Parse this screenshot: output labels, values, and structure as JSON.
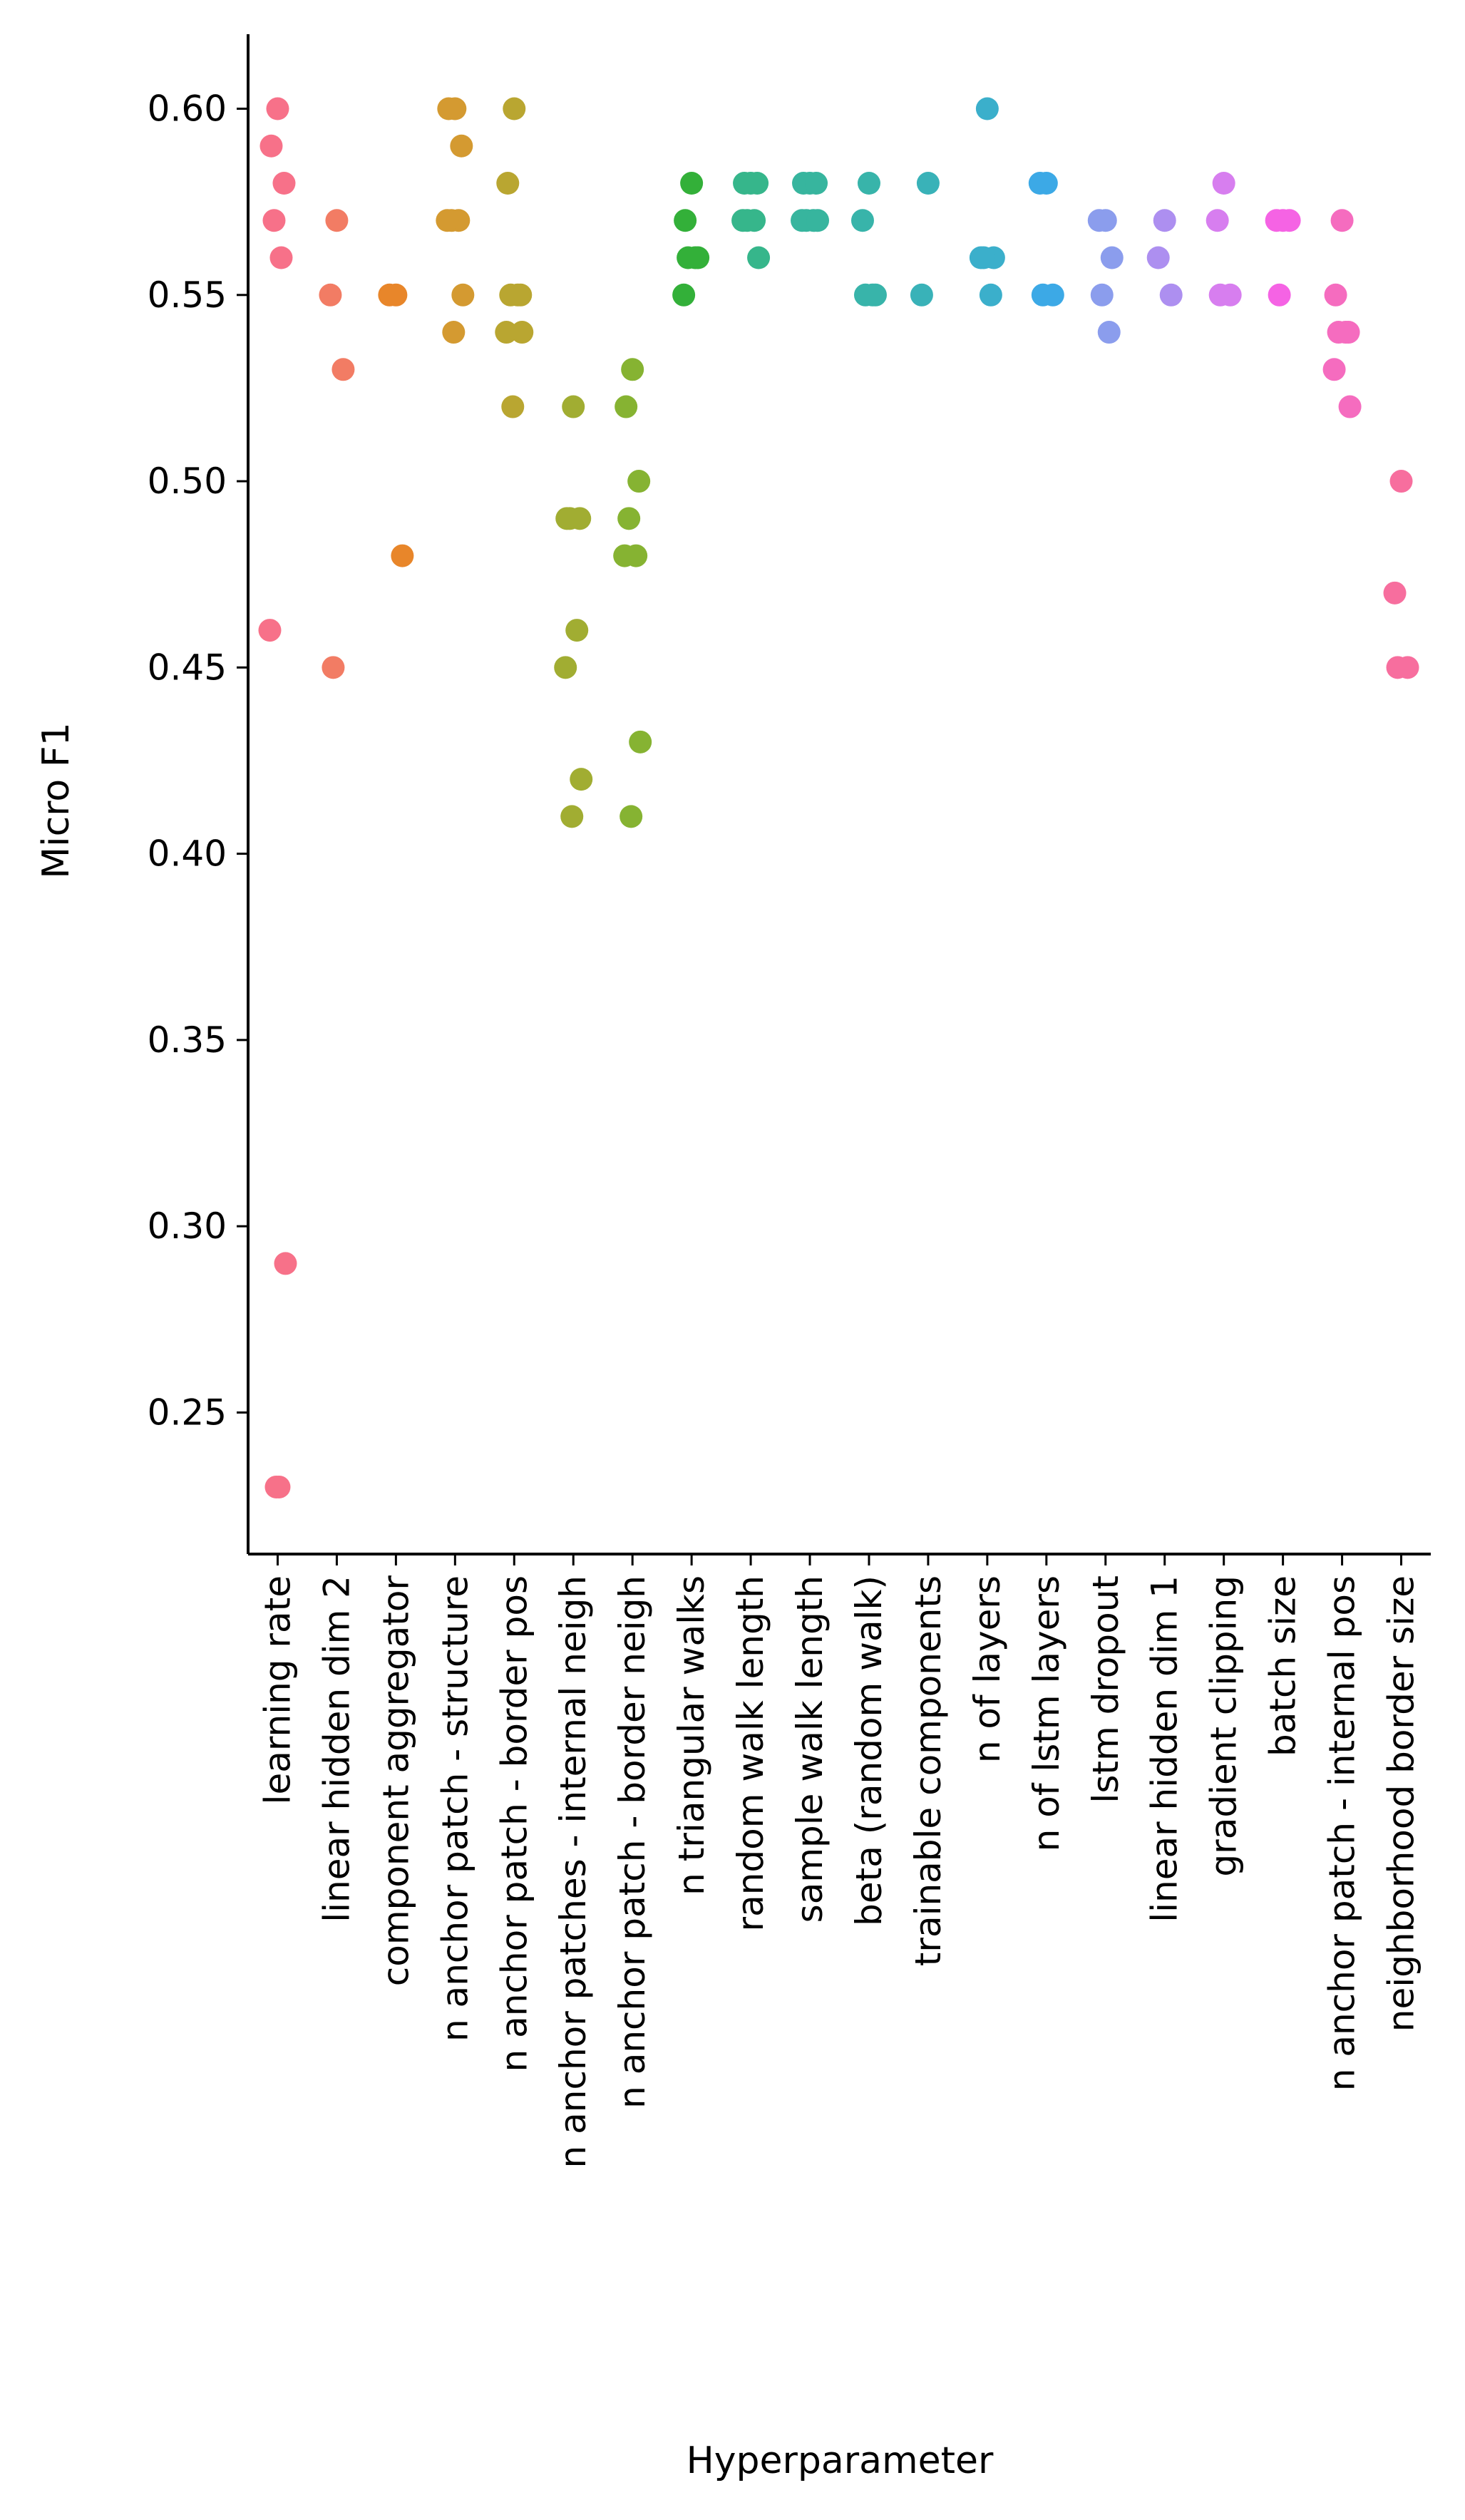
{
  "chart_data": {
    "type": "scatter",
    "subtype": "strip",
    "title": "",
    "xlabel": "Hyperparameter",
    "ylabel": "Micro F1",
    "ylim": [
      0.212,
      0.62
    ],
    "yticks": [
      0.25,
      0.3,
      0.35,
      0.4,
      0.45,
      0.5,
      0.55,
      0.6
    ],
    "ytick_labels": [
      "0.25",
      "0.30",
      "0.35",
      "0.40",
      "0.45",
      "0.50",
      "0.55",
      "0.60"
    ],
    "grid": false,
    "legend": "none",
    "categories": [
      "learning rate",
      "linear hidden dim 2",
      "component aggregator",
      "n anchor patch - structure",
      "n anchor patch - border pos",
      "n anchor patches - internal neigh",
      "n anchor patch - border neigh",
      "n triangular walks",
      "random walk length",
      "sample walk length",
      "beta (random walk)",
      "trainable components",
      "n of layers",
      "n of lstm layers",
      "lstm dropout",
      "linear hidden dim 1",
      "gradient clipping",
      "batch size",
      "n anchor patch - internal pos",
      "neighborhood border size"
    ],
    "colors": [
      "#f77189",
      "#f27c64",
      "#e8862a",
      "#d49a31",
      "#b9a631",
      "#a1ad32",
      "#86b332",
      "#33b039",
      "#36b68b",
      "#37b59e",
      "#38b4aa",
      "#39b2b8",
      "#3bafcb",
      "#3ca9e6",
      "#8b9ded",
      "#ad8ff0",
      "#d77eef",
      "#f563e4",
      "#f56cbf",
      "#f76e9e"
    ],
    "series": [
      {
        "name": "learning rate",
        "values": [
          0.6,
          0.59,
          0.58,
          0.57,
          0.56,
          0.46,
          0.29,
          0.23,
          0.23
        ]
      },
      {
        "name": "linear hidden dim 2",
        "values": [
          0.57,
          0.55,
          0.53,
          0.45
        ]
      },
      {
        "name": "component aggregator",
        "values": [
          0.55,
          0.55,
          0.48
        ]
      },
      {
        "name": "n anchor patch - structure",
        "values": [
          0.6,
          0.6,
          0.59,
          0.57,
          0.57,
          0.57,
          0.55,
          0.54
        ]
      },
      {
        "name": "n anchor patch - border pos",
        "values": [
          0.6,
          0.58,
          0.55,
          0.55,
          0.55,
          0.54,
          0.54,
          0.52
        ]
      },
      {
        "name": "n anchor patches - internal neigh",
        "values": [
          0.52,
          0.49,
          0.49,
          0.49,
          0.46,
          0.45,
          0.42,
          0.41
        ]
      },
      {
        "name": "n anchor patch - border neigh",
        "values": [
          0.53,
          0.52,
          0.5,
          0.49,
          0.48,
          0.48,
          0.43,
          0.41
        ]
      },
      {
        "name": "n triangular walks",
        "values": [
          0.58,
          0.57,
          0.56,
          0.56,
          0.56,
          0.55
        ]
      },
      {
        "name": "random walk length",
        "values": [
          0.58,
          0.58,
          0.58,
          0.57,
          0.57,
          0.57,
          0.56
        ]
      },
      {
        "name": "sample walk length",
        "values": [
          0.58,
          0.58,
          0.58,
          0.57,
          0.57,
          0.57,
          0.57
        ]
      },
      {
        "name": "beta (random walk)",
        "values": [
          0.58,
          0.57,
          0.55,
          0.55,
          0.55
        ]
      },
      {
        "name": "trainable components",
        "values": [
          0.58,
          0.55
        ]
      },
      {
        "name": "n of layers",
        "values": [
          0.6,
          0.56,
          0.56,
          0.56,
          0.55
        ]
      },
      {
        "name": "n of lstm layers",
        "values": [
          0.58,
          0.58,
          0.55,
          0.55
        ]
      },
      {
        "name": "lstm dropout",
        "values": [
          0.57,
          0.57,
          0.56,
          0.55,
          0.54
        ]
      },
      {
        "name": "linear hidden dim 1",
        "values": [
          0.57,
          0.56,
          0.55
        ]
      },
      {
        "name": "gradient clipping",
        "values": [
          0.58,
          0.57,
          0.55,
          0.55
        ]
      },
      {
        "name": "batch size",
        "values": [
          0.57,
          0.57,
          0.57,
          0.55
        ]
      },
      {
        "name": "n anchor patch - internal pos",
        "values": [
          0.57,
          0.55,
          0.54,
          0.54,
          0.54,
          0.53,
          0.52
        ]
      },
      {
        "name": "neighborhood border size",
        "values": [
          0.5,
          0.47,
          0.45,
          0.45
        ]
      }
    ]
  }
}
